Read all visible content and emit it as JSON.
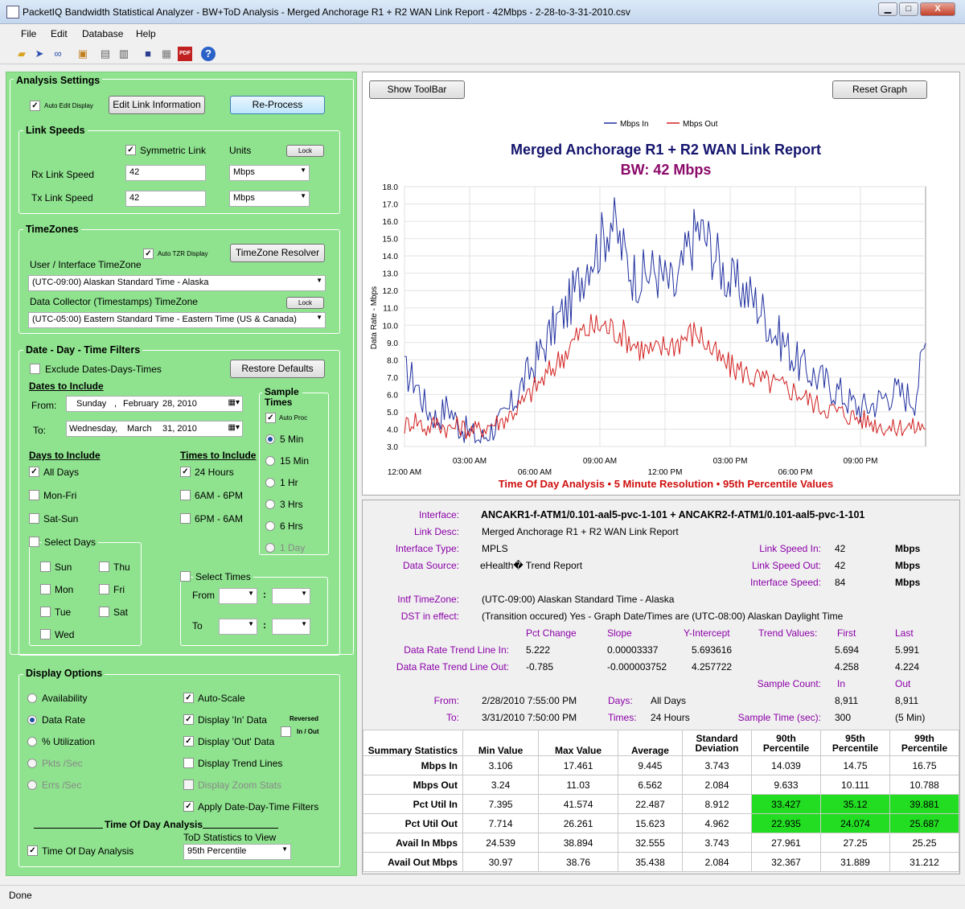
{
  "window": {
    "title": "PacketIQ Bandwidth Statistical Analyzer -  BW+ToD Analysis - Merged Anchorage R1 + R2 WAN Link Report - 42Mbps - 2-28-to-3-31-2010.csv",
    "min": "▁",
    "max": "□",
    "close": "X"
  },
  "menu": [
    "File",
    "Edit",
    "Database",
    "Help"
  ],
  "toolbar_icons": [
    "open-folder",
    "arrow",
    "link",
    "export",
    "print-preview",
    "print",
    "save",
    "report",
    "pdf",
    "help"
  ],
  "analysis": {
    "title": "Analysis Settings",
    "auto_edit": "Auto Edit Display",
    "edit_link": "Edit Link Information",
    "reprocess": "Re-Process",
    "link_speeds": {
      "title": "Link Speeds",
      "symmetric": "Symmetric Link",
      "units": "Units",
      "lock": "Lock",
      "rx_label": "Rx Link Speed",
      "rx_value": "42",
      "rx_units": "Mbps",
      "tx_label": "Tx Link Speed",
      "tx_value": "42",
      "tx_units": "Mbps"
    },
    "timezones": {
      "title": "TimeZones",
      "auto_tzr": "Auto TZR Display",
      "resolver": "TimeZone Resolver",
      "user_tz_label": "User / Interface TimeZone",
      "user_tz": "(UTC-09:00) Alaskan Standard Time - Alaska",
      "collector_label": "Data Collector (Timestamps) TimeZone",
      "lock": "Lock",
      "collector_tz": "(UTC-05:00) Eastern Standard Time - Eastern Time (US & Canada)"
    },
    "filters": {
      "title": "Date - Day - Time Filters",
      "exclude": "Exclude Dates-Days-Times",
      "restore": "Restore Defaults",
      "dates_include": "Dates to Include",
      "from_label": "From:",
      "from_day": "Sunday",
      "from_sep": ",",
      "from_month": "February",
      "from_date": "28, 2010",
      "to_label": "To:",
      "to_day": "Wednesday,",
      "to_month": "March",
      "to_date": "31, 2010",
      "sample_times": "Sample Times",
      "auto_proc": "Auto Proc",
      "samples": [
        "5 Min",
        "15 Min",
        "1 Hr",
        "3 Hrs",
        "6 Hrs",
        "1 Day"
      ],
      "days_include": "Days to Include",
      "days": [
        "All Days",
        "Mon-Fri",
        "Sat-Sun",
        "Select Days"
      ],
      "select_days": [
        "Sun",
        "Mon",
        "Tue",
        "Wed",
        "Thu",
        "Fri",
        "Sat"
      ],
      "times_include": "Times to Include",
      "times": [
        "24 Hours",
        "6AM - 6PM",
        "6PM - 6AM"
      ],
      "select_times": "Select Times",
      "from": "From",
      "to": "To",
      "colon": ":"
    },
    "display": {
      "title": "Display Options",
      "radios": [
        "Availability",
        "Data Rate",
        "% Utilization",
        "Pkts /Sec",
        "Errs /Sec"
      ],
      "checks": [
        "Auto-Scale",
        "Display 'In' Data",
        "Display 'Out' Data",
        "Display Trend Lines",
        "Display Zoom Stats",
        "Apply Date-Day-Time Filters"
      ],
      "reversed": "Reversed",
      "in_out": "In / Out",
      "tod_title": "Time Of Day Analysis",
      "tod_stats_label": "ToD Statistics to View",
      "tod_check": "Time Of Day Analysis",
      "tod_stat": "95th Percentile"
    }
  },
  "chart_controls": {
    "show_toolbar": "Show ToolBar",
    "reset_graph": "Reset Graph"
  },
  "chart_data": {
    "type": "line",
    "title": "Merged Anchorage R1 + R2 WAN Link Report",
    "subtitle": "BW:  42 Mbps",
    "xlabel": "Time Of Day Analysis  •  5 Minute Resolution  •  95th Percentile Values",
    "ylabel": "Data Rate - Mbps",
    "ylim": [
      3,
      18
    ],
    "yticks": [
      "18.0",
      "17.0",
      "16.0",
      "15.0",
      "14.0",
      "13.0",
      "12.0",
      "11.0",
      "10.0",
      "9.0",
      "8.0",
      "7.0",
      "6.0",
      "5.0",
      "4.0",
      "3.0"
    ],
    "xticks": [
      "12:00 AM",
      "03:00 AM",
      "06:00 AM",
      "09:00 AM",
      "12:00 PM",
      "03:00 PM",
      "06:00 PM",
      "09:00 PM"
    ],
    "xlim_hours": [
      0,
      24
    ],
    "legend": "top-center",
    "series": [
      {
        "name": "Mbps In",
        "color": "#1f2f9f",
        "x_hours": [
          0,
          0.5,
          1,
          1.5,
          2,
          2.5,
          3,
          3.5,
          4,
          4.5,
          5,
          5.5,
          6,
          6.5,
          7,
          7.5,
          8,
          8.5,
          9,
          9.5,
          10,
          10.5,
          11,
          11.5,
          12,
          12.5,
          13,
          13.5,
          14,
          14.5,
          15,
          15.5,
          16,
          16.5,
          17,
          17.5,
          18,
          18.5,
          19,
          19.5,
          20,
          20.5,
          21,
          21.5,
          22,
          22.5,
          23,
          23.5,
          24
        ],
        "values": [
          7.3,
          6.8,
          5.2,
          4.6,
          5.4,
          4.2,
          3.8,
          3.4,
          4.0,
          4.5,
          5.5,
          6.8,
          7.8,
          9.0,
          10.2,
          11.0,
          12.4,
          14.0,
          14.6,
          16.2,
          14.5,
          13.0,
          12.8,
          13.2,
          12.6,
          12.0,
          14.2,
          15.6,
          14.8,
          13.6,
          12.4,
          12.2,
          11.6,
          10.8,
          9.6,
          9.0,
          8.0,
          7.4,
          7.0,
          6.6,
          6.2,
          5.6,
          5.2,
          5.4,
          5.8,
          6.2,
          6.0,
          5.8,
          9.0
        ]
      },
      {
        "name": "Mbps Out",
        "color": "#d21f1f",
        "x_hours": [
          0,
          0.5,
          1,
          1.5,
          2,
          2.5,
          3,
          3.5,
          4,
          4.5,
          5,
          5.5,
          6,
          6.5,
          7,
          7.5,
          8,
          8.5,
          9,
          9.5,
          10,
          10.5,
          11,
          11.5,
          12,
          12.5,
          13,
          13.5,
          14,
          14.5,
          15,
          15.5,
          16,
          16.5,
          17,
          17.5,
          18,
          18.5,
          19,
          19.5,
          20,
          20.5,
          21,
          21.5,
          22,
          22.5,
          23,
          23.5,
          24
        ],
        "values": [
          4.2,
          4.6,
          4.0,
          4.4,
          4.0,
          4.2,
          3.9,
          4.0,
          4.3,
          4.5,
          5.0,
          5.6,
          6.4,
          7.0,
          7.8,
          8.6,
          9.4,
          9.8,
          10.0,
          9.8,
          9.6,
          9.0,
          8.6,
          8.4,
          8.8,
          9.0,
          9.4,
          9.6,
          8.8,
          8.0,
          7.6,
          7.4,
          7.0,
          6.8,
          6.6,
          6.4,
          6.2,
          5.8,
          5.4,
          5.2,
          5.0,
          4.8,
          4.6,
          4.4,
          4.2,
          4.0,
          4.2,
          4.1,
          4.2
        ]
      }
    ]
  },
  "info": {
    "interface_l": "Interface:",
    "interface_v": "ANCAKR1-f-ATM1/0.101-aal5-pvc-1-101 + ANCAKR2-f-ATM1/0.101-aal5-pvc-1-101",
    "desc_l": "Link Desc:",
    "desc_v": "Merged Anchorage R1 + R2 WAN Link Report",
    "type_l": "Interface Type:",
    "type_v": "MPLS",
    "src_l": "Data Source:",
    "src_v": "eHealth� Trend Report",
    "speed_in_l": "Link Speed In:",
    "speed_in_v": "42",
    "speed_in_u": "Mbps",
    "speed_out_l": "Link Speed Out:",
    "speed_out_v": "42",
    "speed_out_u": "Mbps",
    "if_speed_l": "Interface Speed:",
    "if_speed_v": "84",
    "if_speed_u": "Mbps",
    "tz_l": "Intf TimeZone:",
    "tz_v": "(UTC-09:00) Alaskan Standard Time - Alaska",
    "dst_l": "DST in effect:",
    "dst_v": "(Transition occured) Yes - Graph Date/Times are (UTC-08:00) Alaskan Daylight Time",
    "h_pct": "Pct Change",
    "h_slope": "Slope",
    "h_yint": "Y-Intercept",
    "h_tv": "Trend Values:",
    "h_first": "First",
    "h_last": "Last",
    "trend_in_l": "Data Rate Trend Line In:",
    "trend_in": [
      "5.222",
      "0.00003337",
      "5.693616",
      "5.694",
      "5.991"
    ],
    "trend_out_l": "Data Rate Trend Line Out:",
    "trend_out": [
      "-0.785",
      "-0.000003752",
      "4.257722",
      "4.258",
      "4.224"
    ],
    "sc_l": "Sample Count:",
    "sc_in_h": "In",
    "sc_out_h": "Out",
    "from_l": "From:",
    "from_v": "2/28/2010 7:55:00 PM",
    "to_l": "To:",
    "to_v": "3/31/2010 7:50:00 PM",
    "days_l": "Days:",
    "days_v": "All Days",
    "times_l": "Times:",
    "times_v": "24 Hours",
    "sc_in": "8,911",
    "sc_out": "8,911",
    "st_l": "Sample Time (sec):",
    "st_v": "300",
    "st_u": "(5 Min)"
  },
  "stats": {
    "headers": [
      "Summary Statistics",
      "Min Value",
      "Max Value",
      "Average",
      "Standard Deviation",
      "90th Percentile",
      "95th Percentile",
      "99th Percentile"
    ],
    "rows": [
      [
        "Mbps In",
        "3.106",
        "17.461",
        "9.445",
        "3.743",
        "14.039",
        "14.75",
        "16.75"
      ],
      [
        "Mbps Out",
        "3.24",
        "11.03",
        "6.562",
        "2.084",
        "9.633",
        "10.111",
        "10.788"
      ],
      [
        "Pct Util In",
        "7.395",
        "41.574",
        "22.487",
        "8.912",
        "33.427",
        "35.12",
        "39.881"
      ],
      [
        "Pct Util Out",
        "7.714",
        "26.261",
        "15.623",
        "4.962",
        "22.935",
        "24.074",
        "25.687"
      ],
      [
        "Avail In Mbps",
        "24.539",
        "38.894",
        "32.555",
        "3.743",
        "27.961",
        "27.25",
        "25.25"
      ],
      [
        "Avail Out Mbps",
        "30.97",
        "38.76",
        "35.438",
        "2.084",
        "32.367",
        "31.889",
        "31.212"
      ]
    ],
    "highlight_color": "#22dd22"
  },
  "status": "Done"
}
